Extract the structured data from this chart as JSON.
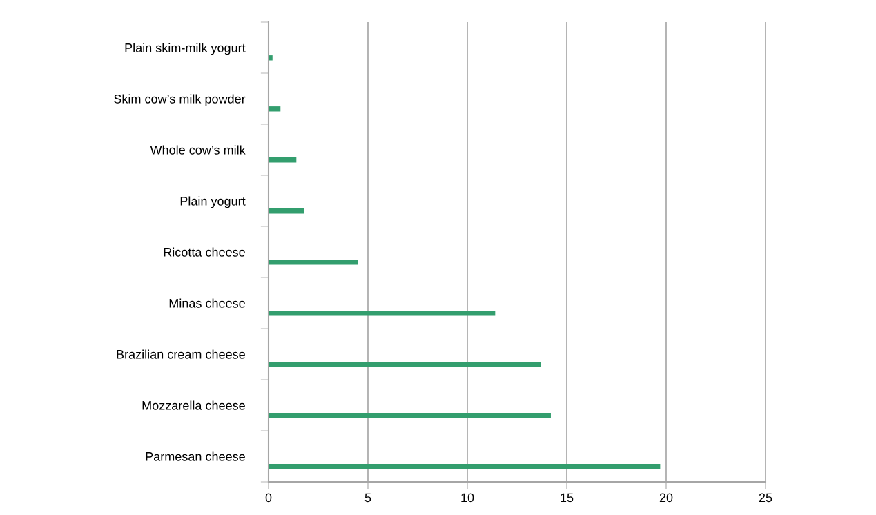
{
  "chart_data": {
    "type": "bar",
    "orientation": "horizontal",
    "categories": [
      "Plain skim-milk yogurt",
      "Skim cow’s milk powder",
      "Whole cow’s milk",
      "Plain yogurt",
      "Ricotta cheese",
      "Minas cheese",
      "Brazilian cream cheese",
      "Mozzarella cheese",
      "Parmesan cheese"
    ],
    "values": [
      0.2,
      0.6,
      1.4,
      1.8,
      4.5,
      11.4,
      13.7,
      14.2,
      19.7
    ],
    "color": "#339e6e",
    "xlim": [
      0,
      25
    ],
    "xticks": [
      0,
      5,
      10,
      15,
      20,
      25
    ],
    "grid": "x"
  }
}
